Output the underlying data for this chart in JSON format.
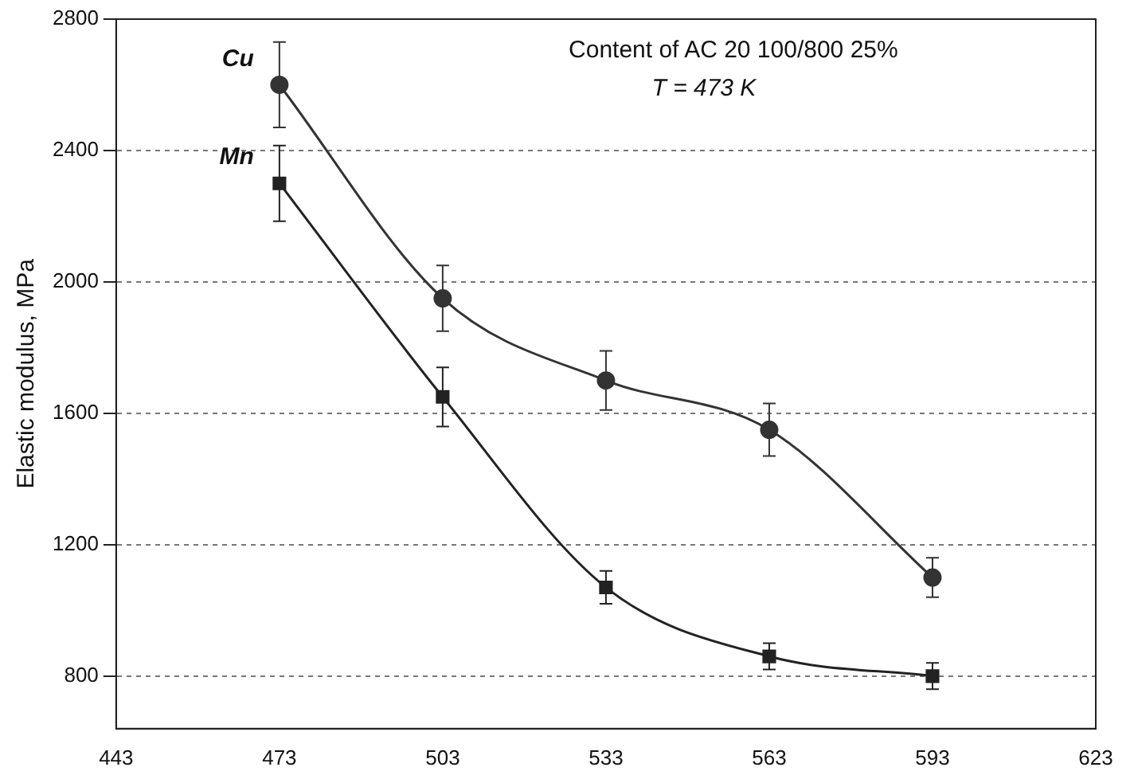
{
  "chart_data": {
    "type": "line",
    "ylabel": "Elastic modulus, MPa",
    "annotations": [
      "Content of AC 20 100/800 25%",
      "T = 473 K"
    ],
    "x": [
      473,
      503,
      533,
      563,
      593
    ],
    "series": [
      {
        "name": "Cu",
        "color": "#333333",
        "marker": "circle",
        "values": [
          2600,
          1950,
          1700,
          1550,
          1100
        ],
        "errors": [
          130,
          100,
          90,
          80,
          60
        ]
      },
      {
        "name": "Mn",
        "color": "#222222",
        "marker": "square",
        "values": [
          2300,
          1650,
          1070,
          860,
          800
        ],
        "errors": [
          115,
          90,
          50,
          40,
          40
        ]
      }
    ],
    "xlim": [
      443,
      623
    ],
    "xticks": [
      443,
      473,
      503,
      533,
      563,
      593,
      623
    ],
    "ylim": [
      640,
      2800
    ],
    "yticks": [
      800,
      1200,
      1600,
      2000,
      2400,
      2800
    ],
    "grid": "y",
    "legend": false,
    "line_style": "solid"
  }
}
